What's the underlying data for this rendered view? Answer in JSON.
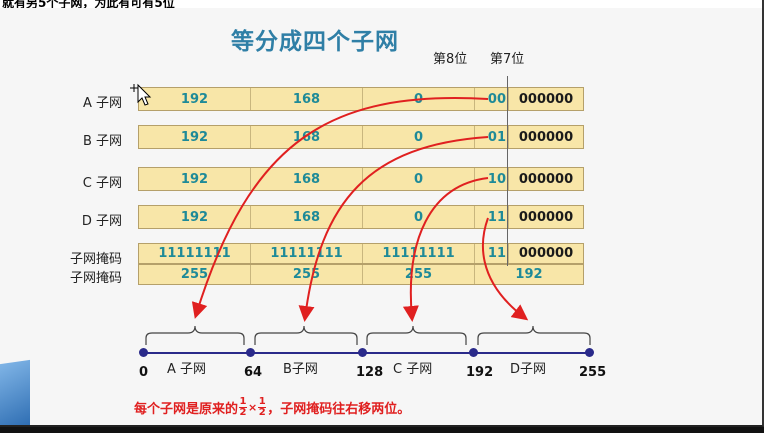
{
  "top_text": "就有另5个子网，为此有可有5位",
  "title": "等分成四个子网",
  "bit_labels": {
    "bit8": "第8位",
    "bit7": "第7位"
  },
  "rows": [
    {
      "label": "A 子网",
      "cells": [
        "192",
        "168",
        "0",
        "00",
        "000000"
      ]
    },
    {
      "label": "B 子网",
      "cells": [
        "192",
        "168",
        "0",
        "01",
        "000000"
      ]
    },
    {
      "label": "C 子网",
      "cells": [
        "192",
        "168",
        "0",
        "10",
        "000000"
      ]
    },
    {
      "label": "D 子网",
      "cells": [
        "192",
        "168",
        "0",
        "11",
        "000000"
      ]
    }
  ],
  "mask": {
    "label1": "子网掩码",
    "label2": "子网掩码",
    "binary": [
      "11111111",
      "11111111",
      "11111111",
      "11",
      "000000"
    ],
    "decimal": [
      "255",
      "255",
      "255",
      "192"
    ]
  },
  "axis": {
    "ticks": [
      "0",
      "64",
      "128",
      "192",
      "255"
    ],
    "segments": [
      "A 子网",
      "B子网",
      "C 子网",
      "D子网"
    ]
  },
  "note": {
    "prefix": "每个子网是原来的",
    "frac1_num": "1",
    "frac1_den": "2",
    "times": "×",
    "frac2_num": "1",
    "frac2_den": "2",
    "suffix": "，子网掩码往右移两位。"
  },
  "colors": {
    "title": "#2f7fa6",
    "bar_fill": "#f8e6a8",
    "digits": "#1e8a98",
    "arrows": "#e02020",
    "axis": "#2a2a8a",
    "note": "#e02020"
  }
}
